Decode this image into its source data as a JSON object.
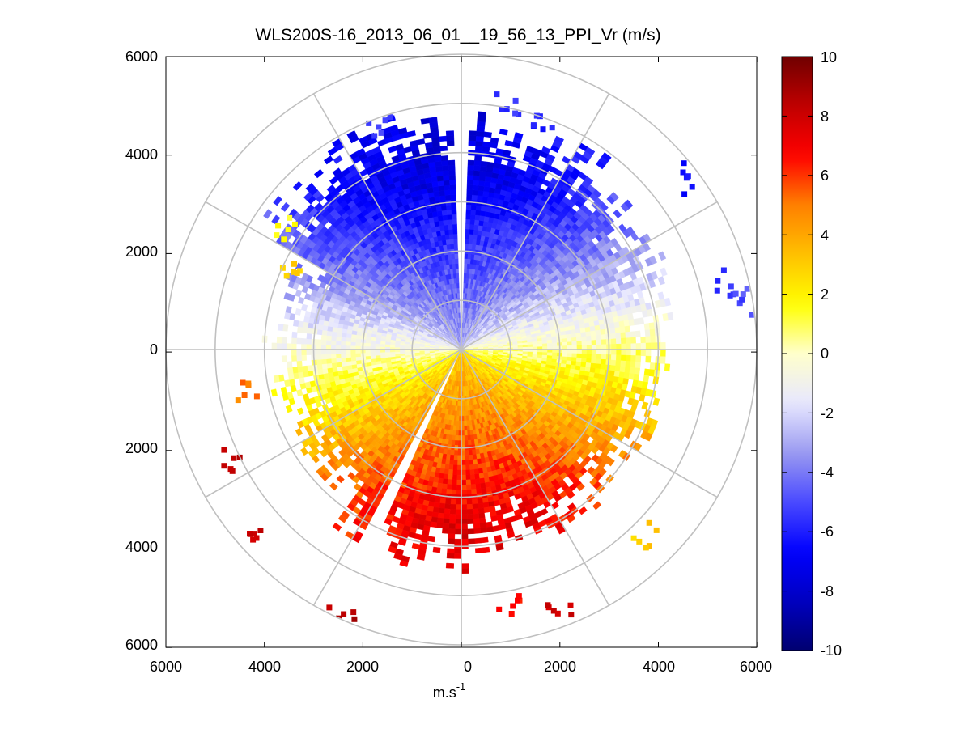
{
  "chart_data": {
    "type": "heatmap",
    "subtype": "polar PPI scan",
    "title": "WLS200S-16_2013_06_01__19_56_13_PPI_Vr (m/s)",
    "xlabel": "m.s",
    "xlabel_sup": "-1",
    "ylabel": "",
    "x_ticks": [
      "6000",
      "4000",
      "2000",
      "0",
      "2000",
      "4000",
      "6000"
    ],
    "y_ticks": [
      "6000",
      "4000",
      "2000",
      "0",
      "2000",
      "4000",
      "6000"
    ],
    "xlim": [
      -6000,
      6000
    ],
    "ylim": [
      -6000,
      6000
    ],
    "range_rings_m": [
      1000,
      2000,
      3000,
      4000,
      5000,
      6000
    ],
    "spoke_angles_deg": [
      0,
      30,
      60,
      90,
      120,
      150,
      180,
      210,
      240,
      270,
      300,
      330
    ],
    "grid": true,
    "colorbar": {
      "label_ticks": [
        "10",
        "8",
        "6",
        "4",
        "2",
        "0",
        "-2",
        "-4",
        "-6",
        "-8",
        "-10"
      ],
      "range": [
        -10,
        10
      ],
      "colormap": [
        "#000070",
        "#0000c0",
        "#0000ff",
        "#4a4aff",
        "#9a9af0",
        "#e8e8ff",
        "#ffffcc",
        "#ffff00",
        "#ffc000",
        "#ff8000",
        "#ff0000",
        "#c00000",
        "#700000"
      ]
    },
    "velocity_field": {
      "units": "m/s",
      "description_sectors": [
        {
          "from_bearing_deg": 270,
          "to_bearing_deg": 70,
          "sign": "negative",
          "approx_peak": -7
        },
        {
          "from_bearing_deg": 90,
          "to_bearing_deg": 260,
          "sign": "positive",
          "approx_peak": 7
        }
      ]
    }
  }
}
